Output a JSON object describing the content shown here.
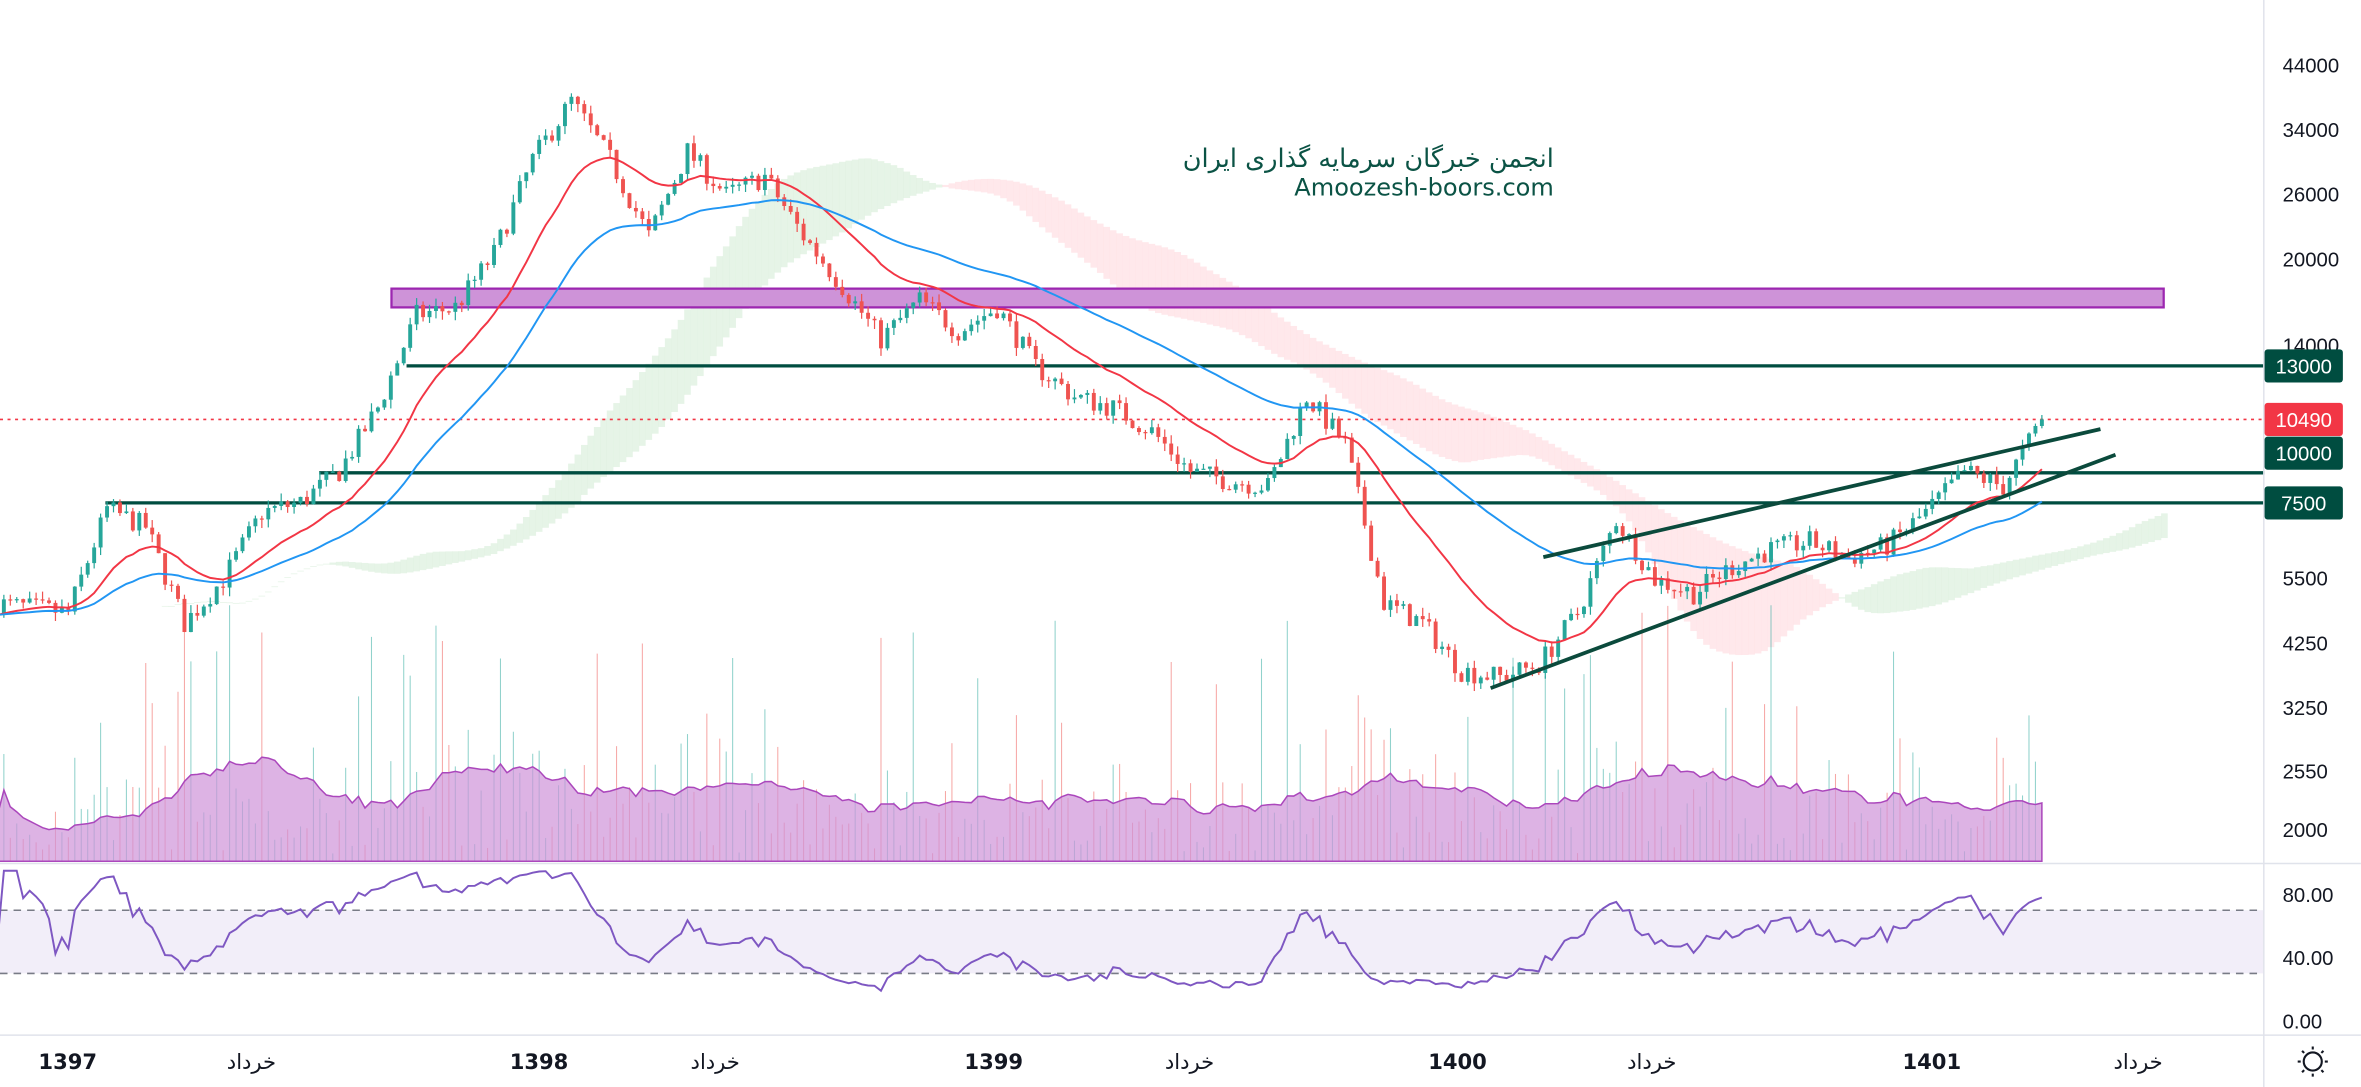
{
  "watermark": {
    "line1": "انجمن خبرگان سرمایه گذاری ایران",
    "line2": "Amoozesh-boors.com"
  },
  "price_axis": {
    "ticks": [
      "44000",
      "34000",
      "26000",
      "20000",
      "14000",
      "5500",
      "4250",
      "3250",
      "2550",
      "2000"
    ]
  },
  "rsi_axis": {
    "ticks": [
      "80.00",
      "40.00",
      "0.00"
    ]
  },
  "time_axis": {
    "labels": [
      "1397",
      "خرداد",
      "1398",
      "خرداد",
      "1399",
      "خرداد",
      "1400",
      "خرداد",
      "1401",
      "خرداد"
    ]
  },
  "levels": [
    {
      "label": "13000",
      "value": 13000,
      "color": "#004d40"
    },
    {
      "label": "10000",
      "value": 10000,
      "color": "#004d40"
    },
    {
      "label": "7500",
      "value": 7500,
      "color": "#004d40"
    }
  ],
  "last_price": {
    "label": "10490",
    "value": 10490,
    "color": "#f23645"
  },
  "zone": {
    "from": 16500,
    "to": 17800,
    "fill": "#ce93d8",
    "stroke": "#9c27b0"
  },
  "colors": {
    "up": "#26a69a",
    "down": "#ef5350",
    "ema_fast": "#f23645",
    "ema_slow": "#2196f3",
    "rsi": "#7e57c2",
    "volume_ma": "#ce93d8",
    "trendline": "#0b4a3c"
  },
  "settings_icon": "sun-gear-icon",
  "chart_data": {
    "type": "candlestick",
    "scale": "log",
    "ylim": [
      1800,
      50000
    ],
    "grid": false,
    "xlabel": "",
    "ylabel": "",
    "close_monthly": {
      "dates": [
        "1396/11",
        "1396/12",
        "1397/01",
        "1397/02",
        "1397/03",
        "1397/04",
        "1397/05",
        "1397/06",
        "1397/07",
        "1397/08",
        "1397/09",
        "1397/10",
        "1397/11",
        "1397/12",
        "1398/01",
        "1398/02",
        "1398/03",
        "1398/04",
        "1398/05",
        "1398/06",
        "1398/07",
        "1398/08",
        "1398/09",
        "1398/10",
        "1398/11",
        "1398/12",
        "1399/01",
        "1399/02",
        "1399/03",
        "1399/04",
        "1399/05",
        "1399/06",
        "1399/07",
        "1399/08",
        "1399/09",
        "1399/10",
        "1399/11",
        "1399/12",
        "1400/01",
        "1400/02",
        "1400/03",
        "1400/04",
        "1400/05",
        "1400/06",
        "1400/07",
        "1400/08",
        "1400/09",
        "1400/10",
        "1400/11",
        "1400/12",
        "1401/01",
        "1401/02",
        "1401/03",
        "1401/04"
      ],
      "values": [
        5000,
        4900,
        4800,
        7300,
        6800,
        4600,
        5500,
        7200,
        7500,
        8500,
        11000,
        16000,
        16500,
        20500,
        30000,
        38000,
        30000,
        22000,
        31000,
        26000,
        28000,
        22000,
        18000,
        14500,
        17000,
        15000,
        16500,
        13000,
        11500,
        11000,
        10000,
        8500,
        8200,
        8000,
        11500,
        9500,
        5000,
        4600,
        3800,
        3700,
        3900,
        4800,
        7000,
        5500,
        5200,
        5800,
        6200,
        6400,
        6000,
        6300,
        7200,
        8500,
        8000,
        10490
      ]
    },
    "indicators": [
      "EMA fast",
      "EMA slow",
      "Ichimoku cloud",
      "Volume + MA",
      "RSI 14"
    ],
    "rsi_bands": [
      30,
      70
    ],
    "rsi_ylim": [
      0,
      100
    ]
  }
}
